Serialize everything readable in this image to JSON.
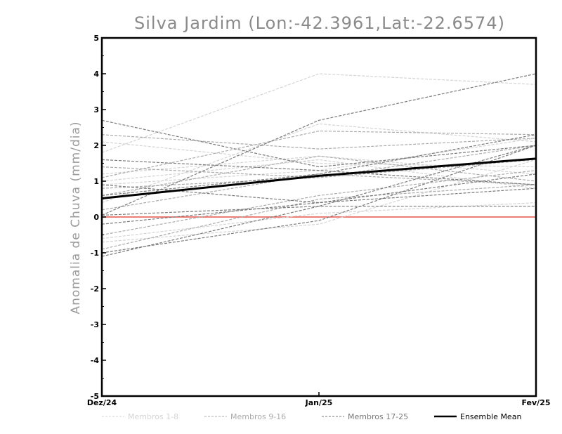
{
  "chart_data": {
    "type": "line",
    "title": "Silva Jardim (Lon:-42.3961,Lat:-22.6574)",
    "ylabel": "Anomalia de Chuva (mm/dia)",
    "xlabel": "",
    "categories": [
      "Dez/24",
      "Jan/25",
      "Fev/25"
    ],
    "ylim": [
      -5,
      5
    ],
    "yticks": [
      "5",
      "4",
      "3",
      "2",
      "1",
      "0",
      "-1",
      "-2",
      "-3",
      "-4",
      "-5"
    ],
    "zero_line_color": "#e8524a",
    "groups": [
      {
        "name": "Membros 1-8",
        "color": "#d4d4d4",
        "values": [
          [
            1.8,
            4.0,
            3.7
          ],
          [
            -0.7,
            -0.2,
            1.6
          ],
          [
            1.2,
            1.7,
            1.2
          ],
          [
            0.9,
            1.3,
            2.2
          ],
          [
            -0.6,
            0.1,
            0.4
          ],
          [
            0.4,
            2.6,
            2.1
          ],
          [
            1.0,
            1.6,
            0.8
          ],
          [
            2.1,
            1.5,
            1.4
          ]
        ]
      },
      {
        "name": "Membros 9-16",
        "color": "#ababab",
        "values": [
          [
            2.3,
            1.9,
            2.2
          ],
          [
            0.8,
            1.1,
            1.6
          ],
          [
            1.1,
            2.4,
            2.3
          ],
          [
            -0.5,
            0.6,
            1.3
          ],
          [
            0.2,
            1.2,
            0.9
          ],
          [
            1.4,
            1.1,
            2.0
          ],
          [
            -0.9,
            0.5,
            0.9
          ],
          [
            0.6,
            1.7,
            1.0
          ]
        ]
      },
      {
        "name": "Membros 17-25",
        "color": "#7a7a7a",
        "values": [
          [
            2.7,
            1.4,
            2.0
          ],
          [
            0.05,
            2.7,
            4.0
          ],
          [
            -1.1,
            0.3,
            2.0
          ],
          [
            0.6,
            1.2,
            2.3
          ],
          [
            -1.0,
            -0.1,
            2.0
          ],
          [
            0.05,
            0.3,
            0.3
          ],
          [
            1.6,
            1.3,
            0.9
          ],
          [
            -0.2,
            0.4,
            1.2
          ],
          [
            0.9,
            0.4,
            0.8
          ]
        ]
      }
    ],
    "ensemble_mean": {
      "name": "Ensemble Mean",
      "color": "#000000",
      "values": [
        0.52,
        1.15,
        1.63
      ]
    },
    "legend_position": "bottom"
  }
}
